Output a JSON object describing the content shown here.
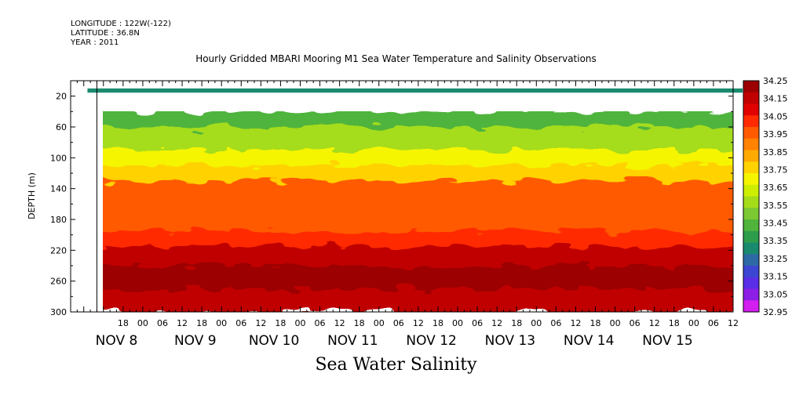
{
  "header": {
    "longitude": "LONGITUDE : 122W(-122)",
    "latitude": "LATITUDE : 36.8N",
    "year": "YEAR : 2011"
  },
  "chart_data": {
    "type": "heatmap",
    "title": "Hourly Gridded MBARI Mooring M1 Sea Water Temperature and Salinity Observations",
    "xlabel": "Sea Water Salinity",
    "ylabel": "DEPTH (m)",
    "x_hour_ticks": [
      "18",
      "00",
      "06",
      "12",
      "18",
      "00",
      "06",
      "12",
      "18",
      "00",
      "06",
      "12",
      "18",
      "00",
      "06",
      "12",
      "18",
      "00",
      "06",
      "12",
      "18",
      "00",
      "06",
      "12",
      "18",
      "00",
      "06",
      "12",
      "18",
      "00",
      "06",
      "12"
    ],
    "x_day_labels": [
      "NOV  8",
      "NOV  9",
      "NOV 10",
      "NOV 11",
      "NOV 12",
      "NOV 13",
      "NOV 14",
      "NOV 15"
    ],
    "y_ticks": [
      20,
      60,
      100,
      140,
      180,
      220,
      260,
      300
    ],
    "ylim": [
      300,
      0
    ],
    "x_range_hours_from_nov8_00": [
      -22,
      180
    ],
    "data_start_hours_from_nov8_00": -14,
    "colorbar": {
      "labels": [
        "34.25",
        "34.15",
        "34.05",
        "33.95",
        "33.85",
        "33.75",
        "33.65",
        "33.55",
        "33.45",
        "33.35",
        "33.25",
        "33.15",
        "33.05",
        "32.95"
      ],
      "colors": [
        "#9c0000",
        "#c00000",
        "#e00000",
        "#ff2a00",
        "#ff5a00",
        "#ff8200",
        "#ffaa00",
        "#ffd200",
        "#f5f500",
        "#cdee00",
        "#a5dc1a",
        "#7cc832",
        "#50b43c",
        "#2d9d4b",
        "#1a8a6e",
        "#2d6aa5",
        "#3c46d2",
        "#5a2de6",
        "#8c1ee6",
        "#d21eee"
      ]
    },
    "series": [
      {
        "depth_range": [
          10,
          15
        ],
        "salinity": 33.3
      },
      {
        "depth_range": [
          40,
          60
        ],
        "salinity": 33.45
      },
      {
        "depth_range": [
          60,
          90
        ],
        "salinity": 33.6
      },
      {
        "depth_range": [
          90,
          110
        ],
        "salinity": 33.7
      },
      {
        "depth_range": [
          110,
          130
        ],
        "salinity": 33.8
      },
      {
        "depth_range": [
          130,
          150
        ],
        "salinity": 33.95
      },
      {
        "depth_range": [
          150,
          195
        ],
        "salinity": 34.0
      },
      {
        "depth_range": [
          195,
          215
        ],
        "salinity": 34.07
      },
      {
        "depth_range": [
          215,
          240
        ],
        "salinity": 34.15
      },
      {
        "depth_range": [
          240,
          270
        ],
        "salinity": 34.25
      },
      {
        "depth_range": [
          270,
          300
        ],
        "salinity": 34.17
      }
    ]
  }
}
